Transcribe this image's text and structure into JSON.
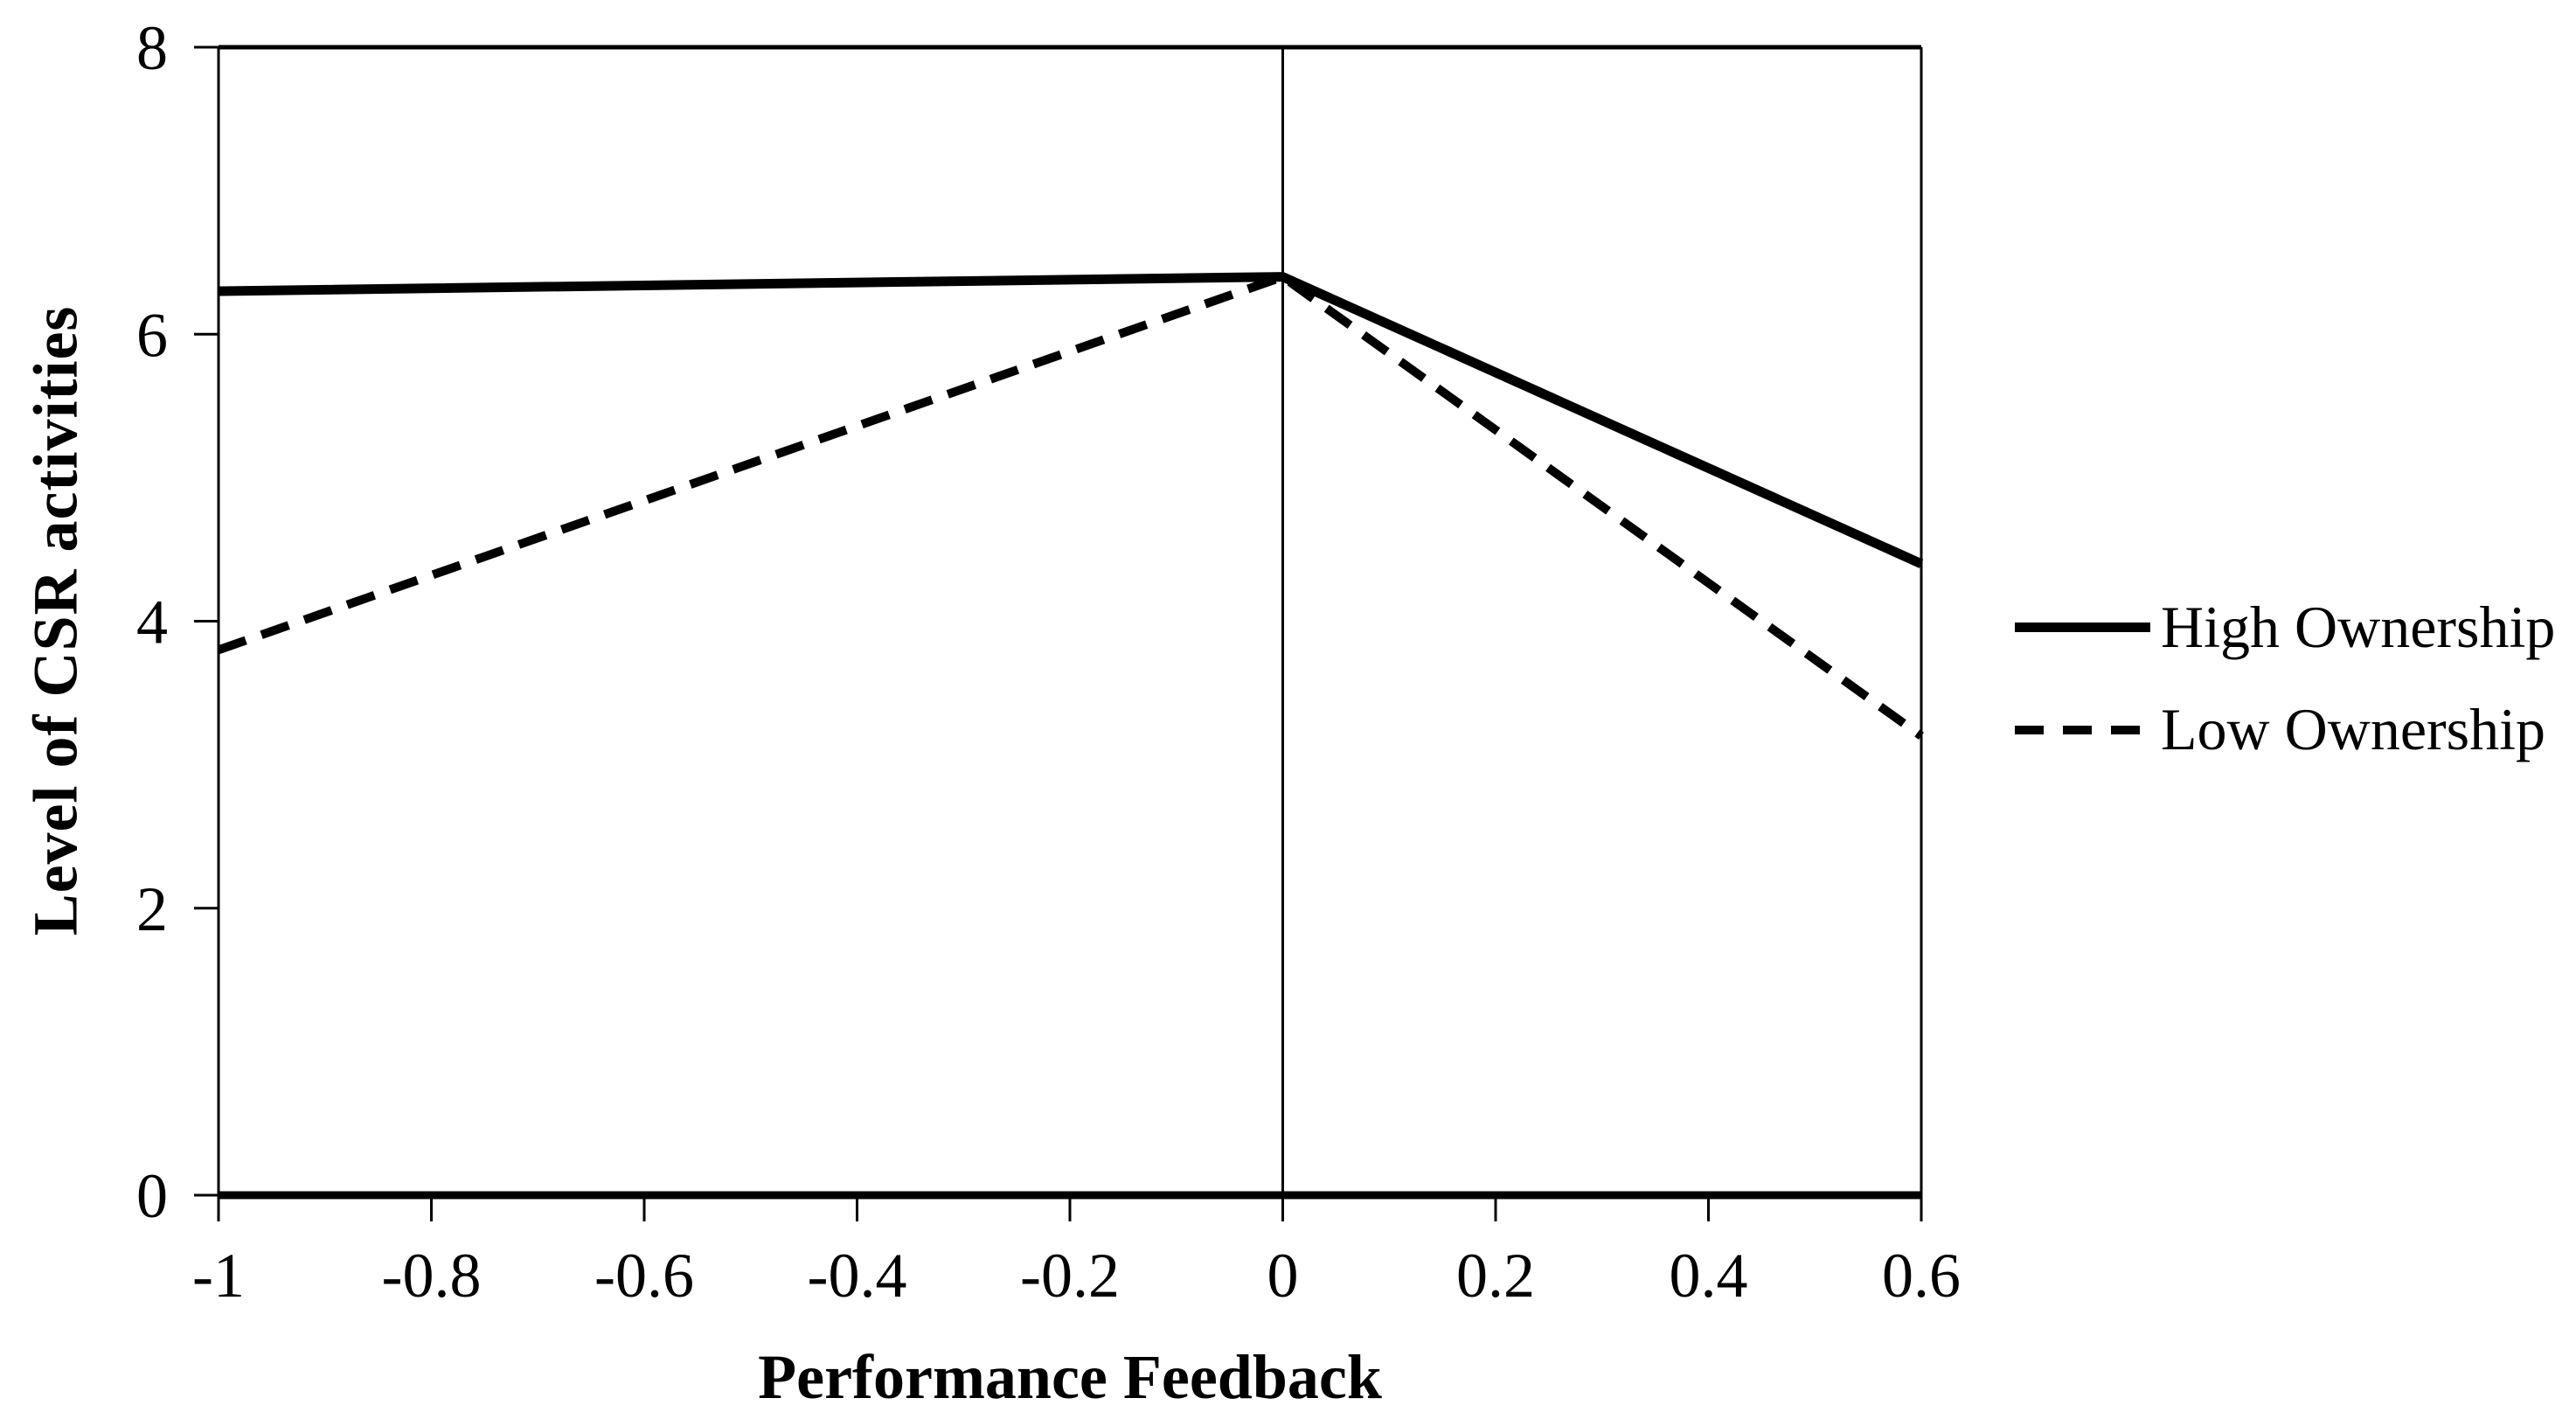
{
  "chart_data": {
    "type": "line",
    "title": "",
    "xlabel": "Performance Feedback",
    "ylabel": "Level of CSR activities",
    "xlim": [
      -1,
      0.6
    ],
    "ylim": [
      0,
      8
    ],
    "x": [
      -1,
      0,
      0.6
    ],
    "series": [
      {
        "name": "High Ownership",
        "line_style": "solid",
        "values": [
          6.3,
          6.4,
          4.4
        ]
      },
      {
        "name": "Low Ownership",
        "line_style": "dashed",
        "values": [
          3.8,
          6.4,
          3.2
        ]
      }
    ],
    "x_tick_values": [
      -1,
      -0.8,
      -0.6,
      -0.4,
      -0.2,
      0,
      0.2,
      0.4,
      0.6
    ],
    "x_tick_labels": [
      "-1",
      "-0.8",
      "-0.6",
      "-0.4",
      "-0.2",
      "0",
      "0.2",
      "0.4",
      "0.6"
    ],
    "y_tick_values": [
      0,
      2,
      4,
      6,
      8
    ],
    "y_tick_labels": [
      "0",
      "2",
      "4",
      "6",
      "8"
    ],
    "grid": false,
    "vertical_reference_line_x": 0,
    "legend_position": "right-middle",
    "line_color": "#000000",
    "background_color": "#ffffff"
  }
}
